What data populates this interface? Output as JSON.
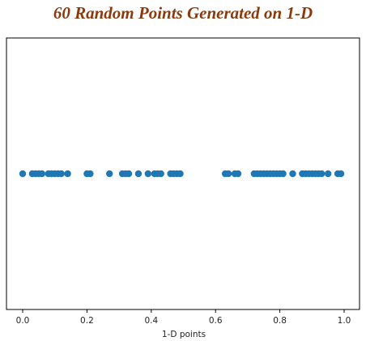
{
  "chart_data": {
    "type": "scatter",
    "title": "60 Random Points Generated on 1-D",
    "xlabel": "1-D points",
    "ylabel": "",
    "xlim": [
      -0.05,
      1.02
    ],
    "x_ticks": [
      0.0,
      0.2,
      0.4,
      0.6,
      0.8,
      1.0
    ],
    "x_tick_labels": [
      "0.0",
      "0.2",
      "0.4",
      "0.6",
      "0.8",
      "1.0"
    ],
    "y_ticks_shown": false,
    "grid": false,
    "marker_color": "#1f77b4",
    "series": [
      {
        "x": [
          0.0,
          0.03,
          0.04,
          0.05,
          0.06,
          0.08,
          0.09,
          0.1,
          0.11,
          0.12,
          0.14,
          0.2,
          0.21,
          0.27,
          0.31,
          0.32,
          0.33,
          0.36,
          0.39,
          0.41,
          0.42,
          0.43,
          0.46,
          0.47,
          0.48,
          0.49,
          0.63,
          0.64,
          0.66,
          0.67,
          0.72,
          0.73,
          0.74,
          0.75,
          0.76,
          0.77,
          0.78,
          0.79,
          0.8,
          0.81,
          0.84,
          0.87,
          0.88,
          0.89,
          0.9,
          0.91,
          0.92,
          0.93,
          0.95,
          0.98,
          0.99
        ],
        "y": 0
      }
    ]
  }
}
